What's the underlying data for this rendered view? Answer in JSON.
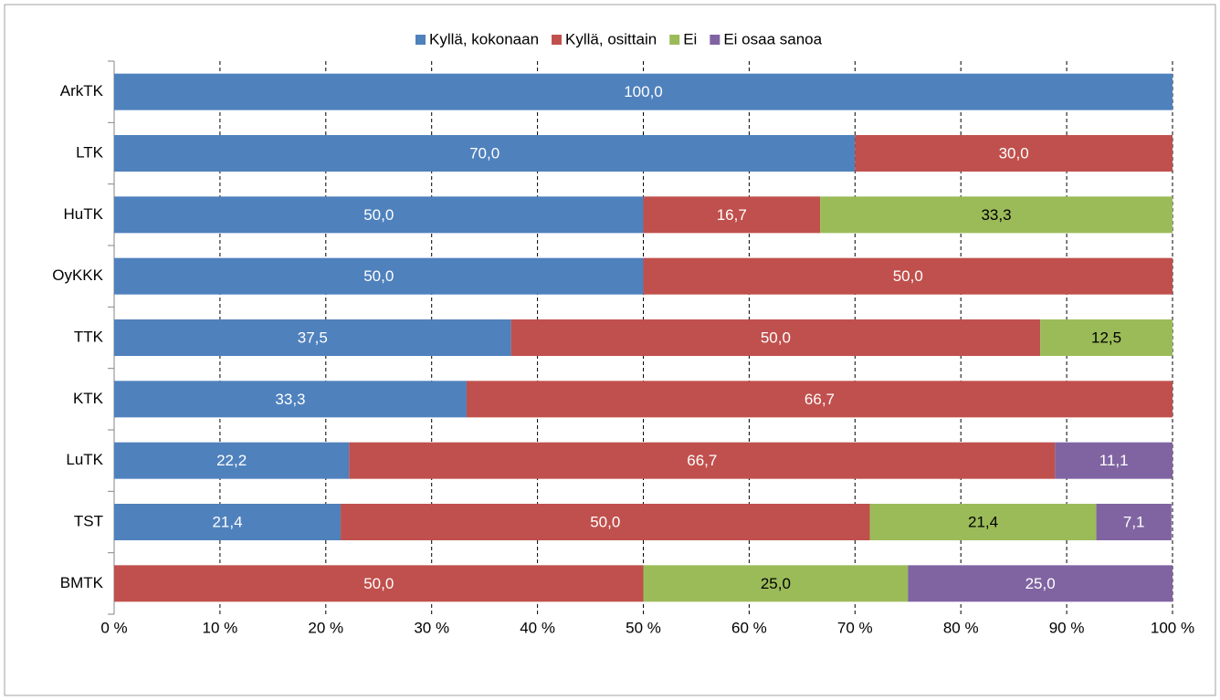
{
  "chart_data": {
    "type": "stacked_barh",
    "categories": [
      "ArkTK",
      "LTK",
      "HuTK",
      "OyKKK",
      "TTK",
      "KTK",
      "LuTK",
      "TST",
      "BMTK"
    ],
    "series": [
      {
        "name": "Kyllä, kokonaan",
        "color": "#4f81bd",
        "label_color": "#ffffff",
        "values": [
          100,
          70,
          50,
          50,
          37.5,
          33.3,
          22.2,
          21.4,
          null
        ],
        "value_labels": [
          "100,0",
          "70,0",
          "50,0",
          "50,0",
          "37,5",
          "33,3",
          "22,2",
          "21,4",
          null
        ]
      },
      {
        "name": "Kyllä, osittain",
        "color": "#c0504d",
        "label_color": "#ffffff",
        "values": [
          null,
          30,
          16.7,
          50,
          50,
          66.7,
          66.7,
          50,
          50
        ],
        "value_labels": [
          null,
          "30,0",
          "16,7",
          "50,0",
          "50,0",
          "66,7",
          "66,7",
          "50,0",
          "50,0"
        ]
      },
      {
        "name": "Ei",
        "color": "#9bbb59",
        "label_color": "#000000",
        "values": [
          null,
          null,
          33.3,
          null,
          12.5,
          null,
          null,
          21.4,
          25
        ],
        "value_labels": [
          null,
          null,
          "33,3",
          null,
          "12,5",
          null,
          null,
          "21,4",
          "25,0"
        ]
      },
      {
        "name": "Ei osaa sanoa",
        "color": "#8064a2",
        "label_color": "#ffffff",
        "values": [
          null,
          null,
          null,
          null,
          null,
          null,
          11.1,
          7.1,
          25
        ],
        "value_labels": [
          null,
          null,
          null,
          null,
          null,
          null,
          "11,1",
          "7,1",
          "25,0"
        ]
      }
    ],
    "xlim": [
      0,
      100
    ],
    "xticks": [
      {
        "value": 0,
        "label": "0 %"
      },
      {
        "value": 10,
        "label": "10 %"
      },
      {
        "value": 20,
        "label": "20 %"
      },
      {
        "value": 30,
        "label": "30 %"
      },
      {
        "value": 40,
        "label": "40 %"
      },
      {
        "value": 50,
        "label": "50 %"
      },
      {
        "value": 60,
        "label": "60 %"
      },
      {
        "value": 70,
        "label": "70 %"
      },
      {
        "value": 80,
        "label": "80 %"
      },
      {
        "value": 90,
        "label": "90 %"
      },
      {
        "value": 100,
        "label": "100 %"
      }
    ],
    "grid": true,
    "legend": "top"
  }
}
